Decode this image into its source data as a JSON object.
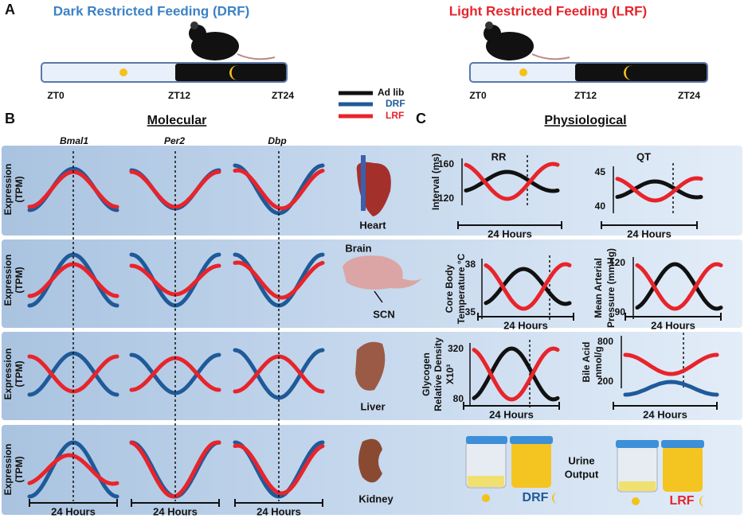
{
  "panel_a": {
    "label": "A",
    "drf_title": "Dark Restricted Feeding (DRF)",
    "lrf_title": "Light Restricted Feeding (LRF)",
    "zt_labels": [
      "ZT0",
      "ZT12",
      "ZT24"
    ]
  },
  "legend": [
    "Ad lib",
    "DRF",
    "LRF"
  ],
  "panel_b": {
    "label": "B",
    "title": "Molecular",
    "genes": [
      "Bmal1",
      "Per2",
      "Dbp"
    ],
    "y_label": [
      "Expression",
      "(TPM)"
    ],
    "organs": [
      "Heart",
      "Brain",
      "SCN",
      "Liver",
      "Kidney"
    ],
    "x_label": "24 Hours"
  },
  "panel_c": {
    "label": "C",
    "title": "Physiological",
    "x_label": "24 Hours",
    "plots": [
      {
        "title": "RR",
        "y_label": [
          "Interval (ms)"
        ],
        "ticks": [
          160,
          120
        ]
      },
      {
        "title": "QT",
        "y_label": [],
        "ticks": [
          45,
          40
        ]
      },
      {
        "y_label": [
          "Core Body",
          "Temperature °C"
        ],
        "ticks": [
          38,
          35
        ]
      },
      {
        "y_label": [
          "Mean Arterial",
          "Pressure (mmHg)"
        ],
        "ticks": [
          120,
          90
        ]
      },
      {
        "y_label": [
          "Glycogen",
          "Relative Density",
          "X10³"
        ],
        "ticks": [
          320,
          80
        ]
      },
      {
        "y_label": [
          "Bile Acid",
          "nmol/g"
        ],
        "ticks": [
          800,
          200
        ]
      }
    ],
    "urine_label": [
      "Urine",
      "Output"
    ],
    "groups": [
      "DRF",
      "LRF"
    ]
  }
}
